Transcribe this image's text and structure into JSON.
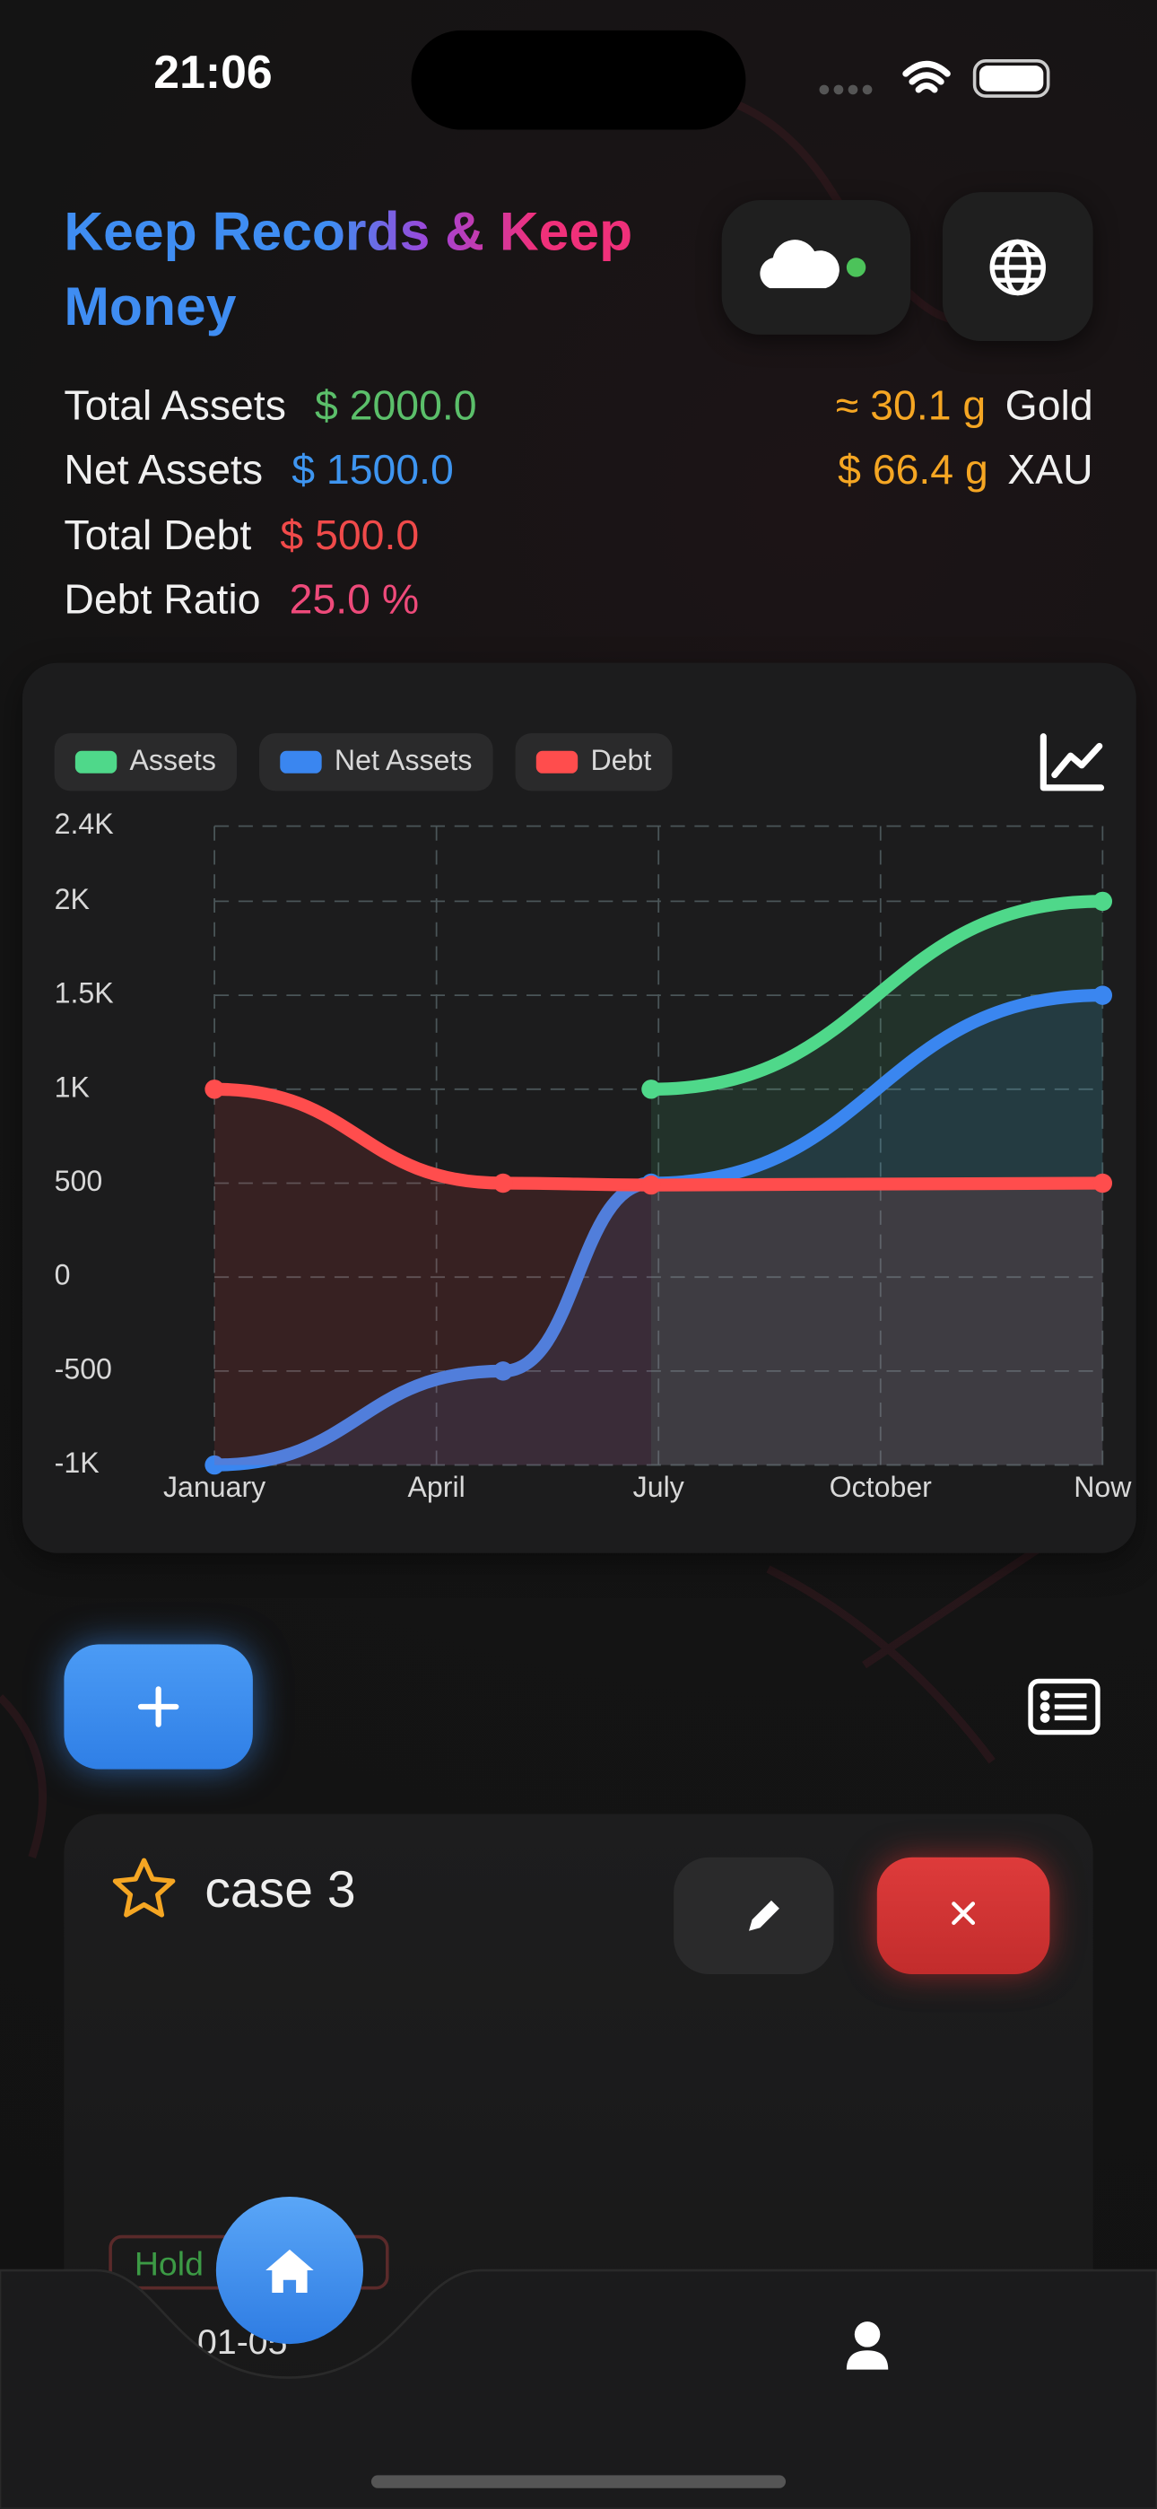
{
  "status_bar": {
    "time": "21:06"
  },
  "header": {
    "title": "Keep Records & Keep Money"
  },
  "summary": [
    {
      "label": "Total Assets",
      "value": "$ 2000.0"
    },
    {
      "label": "Net Assets",
      "value": "$ 1500.0"
    },
    {
      "label": "Total Debt",
      "value": "$ 500.0"
    },
    {
      "label": "Debt Ratio",
      "value": "25.0 %"
    }
  ],
  "gold": [
    {
      "value": "≈ 30.1 g",
      "unit": "Gold"
    },
    {
      "value": "$ 66.4 g",
      "unit": "XAU"
    }
  ],
  "chart_data": {
    "type": "line",
    "xlim": [
      0,
      12
    ],
    "xticks": [
      {
        "value": 0,
        "label": "January"
      },
      {
        "value": 3,
        "label": "April"
      },
      {
        "value": 6,
        "label": "July"
      },
      {
        "value": 9,
        "label": "October"
      },
      {
        "value": 12,
        "label": "Now"
      }
    ],
    "ylim": [
      -1000,
      2400
    ],
    "yticks": [
      {
        "value": -1000,
        "label": "-1K"
      },
      -500,
      0,
      500,
      {
        "value": 1000,
        "label": "1K"
      },
      {
        "value": 1500,
        "label": "1.5K"
      },
      {
        "value": 2000,
        "label": "2K"
      },
      {
        "value": 2400,
        "label": "2.4K"
      }
    ],
    "grid": true,
    "series": [
      {
        "name": "Assets",
        "color": "#4fd88a",
        "x": [
          5.9,
          12
        ],
        "values": [
          1000,
          2000
        ]
      },
      {
        "name": "Net Assets",
        "color": "#3a86f0",
        "x": [
          0,
          3.9,
          5.9,
          12
        ],
        "values": [
          -1000,
          -500,
          500,
          1500
        ]
      },
      {
        "name": "Debt",
        "color": "#ff4d4d",
        "x": [
          0,
          3.9,
          5.9,
          12
        ],
        "values": [
          1000,
          500,
          490,
          500
        ]
      }
    ]
  },
  "record": {
    "name": "case 3",
    "tag": "Hold",
    "date": "-01-05"
  }
}
